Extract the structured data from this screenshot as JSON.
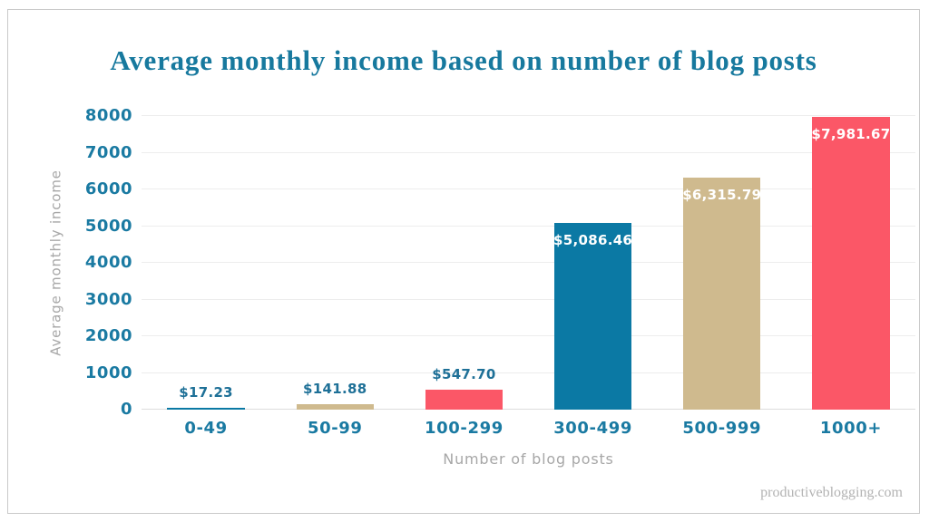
{
  "page": {
    "title": "Average monthly income based on number of blog posts",
    "watermark": "productiveblogging.com"
  },
  "chart_data": {
    "type": "bar",
    "title": "Average monthly income based on number of blog posts",
    "categories": [
      "0-49",
      "50-99",
      "100-299",
      "300-499",
      "500-999",
      "1000+"
    ],
    "values": [
      17.23,
      141.88,
      547.7,
      5086.46,
      6315.79,
      7981.67
    ],
    "value_labels": [
      "$17.23",
      "$141.88",
      "$547.70",
      "$5,086.46",
      "$6,315.79",
      "$7,981.67"
    ],
    "bar_colors": [
      "#0b79a4",
      "#cfba8e",
      "#fb5767",
      "#0b79a4",
      "#cfba8e",
      "#fb5767"
    ],
    "xlabel": "Number of blog posts",
    "ylabel": "Average monthly income",
    "ylim": [
      0,
      8000
    ],
    "yticks": [
      0,
      1000,
      2000,
      3000,
      4000,
      5000,
      6000,
      7000,
      8000
    ],
    "grid": "horizontal-only",
    "legend": "none"
  },
  "colors": {
    "title_teal": "#17799e",
    "axis_teal": "#1a7aa2",
    "bar_blue": "#0b79a4",
    "bar_tan": "#cfba8e",
    "bar_red": "#fb5767",
    "gridline": "#ededed",
    "muted_gray": "#a7a7a7",
    "border_gray": "#c9c9c9"
  }
}
